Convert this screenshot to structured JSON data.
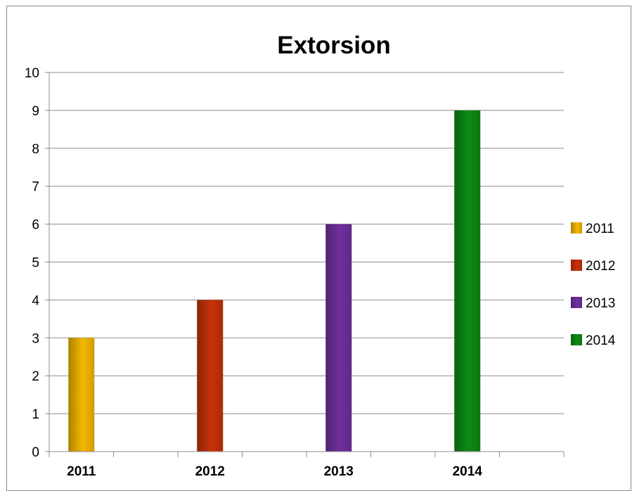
{
  "chart_data": {
    "type": "bar",
    "title": "Extorsion",
    "categories": [
      "2011",
      "2012",
      "2013",
      "2014"
    ],
    "series": [
      {
        "name": "2011",
        "color": "#F5B800",
        "values": [
          3,
          null,
          null,
          null
        ]
      },
      {
        "name": "2012",
        "color": "#C8320A",
        "values": [
          null,
          4,
          null,
          null
        ]
      },
      {
        "name": "2013",
        "color": "#7030A0",
        "values": [
          null,
          null,
          6,
          null
        ]
      },
      {
        "name": "2014",
        "color": "#0E8A16",
        "values": [
          null,
          null,
          null,
          9
        ]
      }
    ],
    "values": [
      3,
      4,
      6,
      9
    ],
    "xlabel": "",
    "ylabel": "",
    "ylim": [
      0,
      10
    ],
    "yticks": [
      0,
      1,
      2,
      3,
      4,
      5,
      6,
      7,
      8,
      9,
      10
    ],
    "grid": true,
    "legend": "right"
  }
}
